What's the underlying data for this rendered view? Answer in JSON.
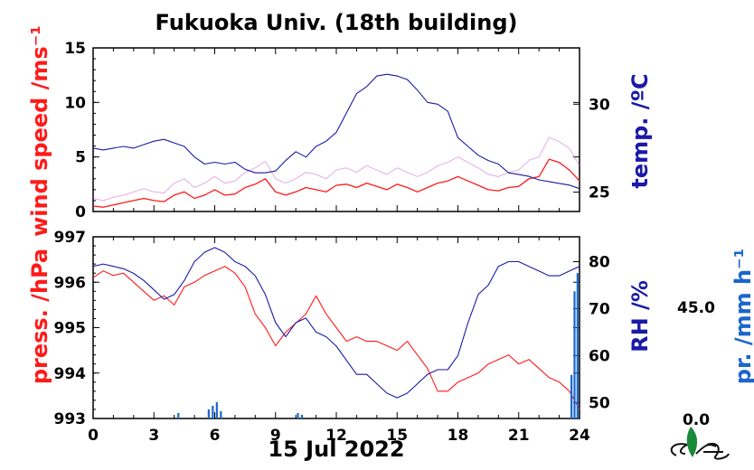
{
  "title": "Fukuoka Univ. (18th building)",
  "date_label": "15 Jul 2022",
  "colors": {
    "wind": "#ff1a1a",
    "wind_gust": "#cc66cc",
    "temp": "#1a1aa6",
    "pressure": "#ff1a1a",
    "rh": "#1a1aa6",
    "precip": "#1a66cc",
    "logo": "#1a8a3a"
  },
  "chart_data": [
    {
      "type": "line",
      "panel": "top",
      "xlabel": "",
      "xlim": [
        0,
        24
      ],
      "left_axis": {
        "label": "wind speed /ms⁻¹",
        "ylim": [
          0,
          15
        ],
        "ticks": [
          "0",
          "5",
          "10",
          "15"
        ]
      },
      "right_axis": {
        "label": "temp. /ºC",
        "ylim": [
          23.9,
          33.2
        ],
        "ticks": [
          "25",
          "30"
        ]
      },
      "series": [
        {
          "axis": "left",
          "role": "wind-speed",
          "x": [
            0,
            0.5,
            1,
            1.5,
            2,
            2.5,
            3,
            3.5,
            4,
            4.5,
            5,
            5.5,
            6,
            6.5,
            7,
            7.5,
            8,
            8.5,
            9,
            9.5,
            10,
            10.5,
            11,
            11.5,
            12,
            12.5,
            13,
            13.5,
            14,
            14.5,
            15,
            15.5,
            16,
            16.5,
            17,
            17.5,
            18,
            18.5,
            19,
            19.5,
            20,
            20.5,
            21,
            21.5,
            22,
            22.5,
            23,
            23.5,
            24
          ],
          "values": [
            0.5,
            0.4,
            0.6,
            0.8,
            1.0,
            1.2,
            1.0,
            0.9,
            1.5,
            1.8,
            1.2,
            1.5,
            2.0,
            1.5,
            1.6,
            2.2,
            2.5,
            3.0,
            1.8,
            1.5,
            1.8,
            2.2,
            2.0,
            1.8,
            2.4,
            2.5,
            2.2,
            2.6,
            2.3,
            2.0,
            2.5,
            2.2,
            1.8,
            2.2,
            2.6,
            2.8,
            3.2,
            2.8,
            2.4,
            2.0,
            1.9,
            2.2,
            2.3,
            3.0,
            3.2,
            4.8,
            4.5,
            3.8,
            2.8
          ]
        },
        {
          "axis": "left",
          "role": "wind-gust-max",
          "x": [
            0,
            0.5,
            1,
            1.5,
            2,
            2.5,
            3,
            3.5,
            4,
            4.5,
            5,
            5.5,
            6,
            6.5,
            7,
            7.5,
            8,
            8.5,
            9,
            9.5,
            10,
            10.5,
            11,
            11.5,
            12,
            12.5,
            13,
            13.5,
            14,
            14.5,
            15,
            15.5,
            16,
            16.5,
            17,
            17.5,
            18,
            18.5,
            19,
            19.5,
            20,
            20.5,
            21,
            21.5,
            22,
            22.5,
            23,
            23.5,
            24
          ],
          "values": [
            1.2,
            1.0,
            1.3,
            1.5,
            1.8,
            2.1,
            1.8,
            1.7,
            2.6,
            3.0,
            2.2,
            2.6,
            3.2,
            2.6,
            2.8,
            3.6,
            4.0,
            4.6,
            3.0,
            2.6,
            3.0,
            3.6,
            3.4,
            3.0,
            3.8,
            4.0,
            3.6,
            4.2,
            3.8,
            3.4,
            4.0,
            3.6,
            3.2,
            3.6,
            4.2,
            4.5,
            5.0,
            4.5,
            4.0,
            3.4,
            3.2,
            3.6,
            3.8,
            4.7,
            5.0,
            6.8,
            6.4,
            5.8,
            4.2
          ]
        },
        {
          "axis": "right",
          "role": "temperature",
          "x": [
            0,
            0.5,
            1,
            1.5,
            2,
            2.5,
            3,
            3.5,
            4,
            4.5,
            5,
            5.5,
            6,
            6.5,
            7,
            7.5,
            8,
            8.5,
            9,
            9.5,
            10,
            10.5,
            11,
            11.5,
            12,
            12.5,
            13,
            13.5,
            14,
            14.5,
            15,
            15.5,
            16,
            16.5,
            17,
            17.5,
            18,
            18.5,
            19,
            19.5,
            20,
            20.5,
            21,
            21.5,
            22,
            22.5,
            23,
            23.5,
            24
          ],
          "values": [
            27.5,
            27.4,
            27.5,
            27.6,
            27.5,
            27.7,
            27.9,
            28.0,
            27.8,
            27.6,
            27.0,
            26.6,
            26.7,
            26.6,
            26.7,
            26.3,
            26.1,
            26.1,
            26.2,
            26.8,
            27.3,
            27.0,
            27.6,
            27.9,
            28.4,
            29.5,
            30.6,
            31.0,
            31.6,
            31.7,
            31.6,
            31.4,
            30.8,
            30.1,
            30.0,
            29.6,
            28.1,
            27.6,
            27.1,
            26.8,
            26.6,
            26.1,
            26.0,
            25.9,
            25.7,
            25.6,
            25.5,
            25.4,
            25.2
          ]
        }
      ]
    },
    {
      "type": "line",
      "panel": "bottom",
      "xlabel": "",
      "xlim": [
        0,
        24
      ],
      "xticks": [
        "0",
        "3",
        "6",
        "9",
        "12",
        "15",
        "18",
        "21",
        "24"
      ],
      "left_axis": {
        "label": "press. /hPa",
        "ylim": [
          993,
          997
        ],
        "ticks": [
          "993",
          "994",
          "995",
          "996",
          "997"
        ]
      },
      "right_axis": {
        "label": "RH /%",
        "ylim": [
          46.6,
          85.3
        ],
        "ticks": [
          "50",
          "60",
          "70",
          "80"
        ]
      },
      "precip_axis": {
        "label": "pr. /mm h⁻¹",
        "ticks": [
          "0.0",
          "45.0"
        ]
      },
      "series": [
        {
          "axis": "left",
          "role": "pressure",
          "x": [
            0,
            0.5,
            1,
            1.5,
            2,
            2.5,
            3,
            3.5,
            4,
            4.5,
            5,
            5.5,
            6,
            6.5,
            7,
            7.5,
            8,
            8.5,
            9,
            9.5,
            10,
            10.5,
            11,
            11.5,
            12,
            12.5,
            13,
            13.5,
            14,
            14.5,
            15,
            15.5,
            16,
            16.5,
            17,
            17.5,
            18,
            18.5,
            19,
            19.5,
            20,
            20.5,
            21,
            21.5,
            22,
            22.5,
            23,
            23.5,
            24
          ],
          "values": [
            996.1,
            996.25,
            996.15,
            996.2,
            996.0,
            995.8,
            995.6,
            995.7,
            995.5,
            995.9,
            996.0,
            996.15,
            996.25,
            996.35,
            996.2,
            995.9,
            995.3,
            995.0,
            994.6,
            994.9,
            995.1,
            995.3,
            995.7,
            995.3,
            995.0,
            994.7,
            994.8,
            994.7,
            994.7,
            994.6,
            994.5,
            994.7,
            994.4,
            994.1,
            993.6,
            993.6,
            993.8,
            993.9,
            994.0,
            994.2,
            994.3,
            994.4,
            994.2,
            994.3,
            994.1,
            993.9,
            993.8,
            993.6,
            993.2
          ]
        },
        {
          "axis": "right",
          "role": "relative-humidity",
          "x": [
            0,
            0.5,
            1,
            1.5,
            2,
            2.5,
            3,
            3.5,
            4,
            4.5,
            5,
            5.5,
            6,
            6.5,
            7,
            7.5,
            8,
            8.5,
            9,
            9.5,
            10,
            10.5,
            11,
            11.5,
            12,
            12.5,
            13,
            13.5,
            14,
            14.5,
            15,
            15.5,
            16,
            16.5,
            17,
            17.5,
            18,
            18.5,
            19,
            19.5,
            20,
            20.5,
            21,
            21.5,
            22,
            22.5,
            23,
            23.5,
            24
          ],
          "values": [
            79,
            79.5,
            79,
            78.5,
            77.5,
            76,
            74,
            72,
            73,
            76,
            80,
            82,
            83,
            82,
            80,
            79,
            77,
            73,
            67,
            64,
            67,
            68,
            65,
            64,
            62,
            59,
            56,
            56,
            54,
            52,
            51,
            52,
            54,
            56,
            57,
            57,
            60,
            67,
            73,
            75,
            79,
            80,
            80,
            79,
            78,
            77,
            77,
            78,
            79
          ]
        },
        {
          "axis": "precip",
          "role": "precipitation-bars",
          "x": [
            4.2,
            5.7,
            5.9,
            6.1,
            6.3,
            10.1,
            10.3,
            23.6,
            23.75,
            23.9
          ],
          "values": [
            1.5,
            2.5,
            3.5,
            4.5,
            2.0,
            1.5,
            1.0,
            12.0,
            35.0,
            40.0
          ]
        }
      ]
    }
  ]
}
